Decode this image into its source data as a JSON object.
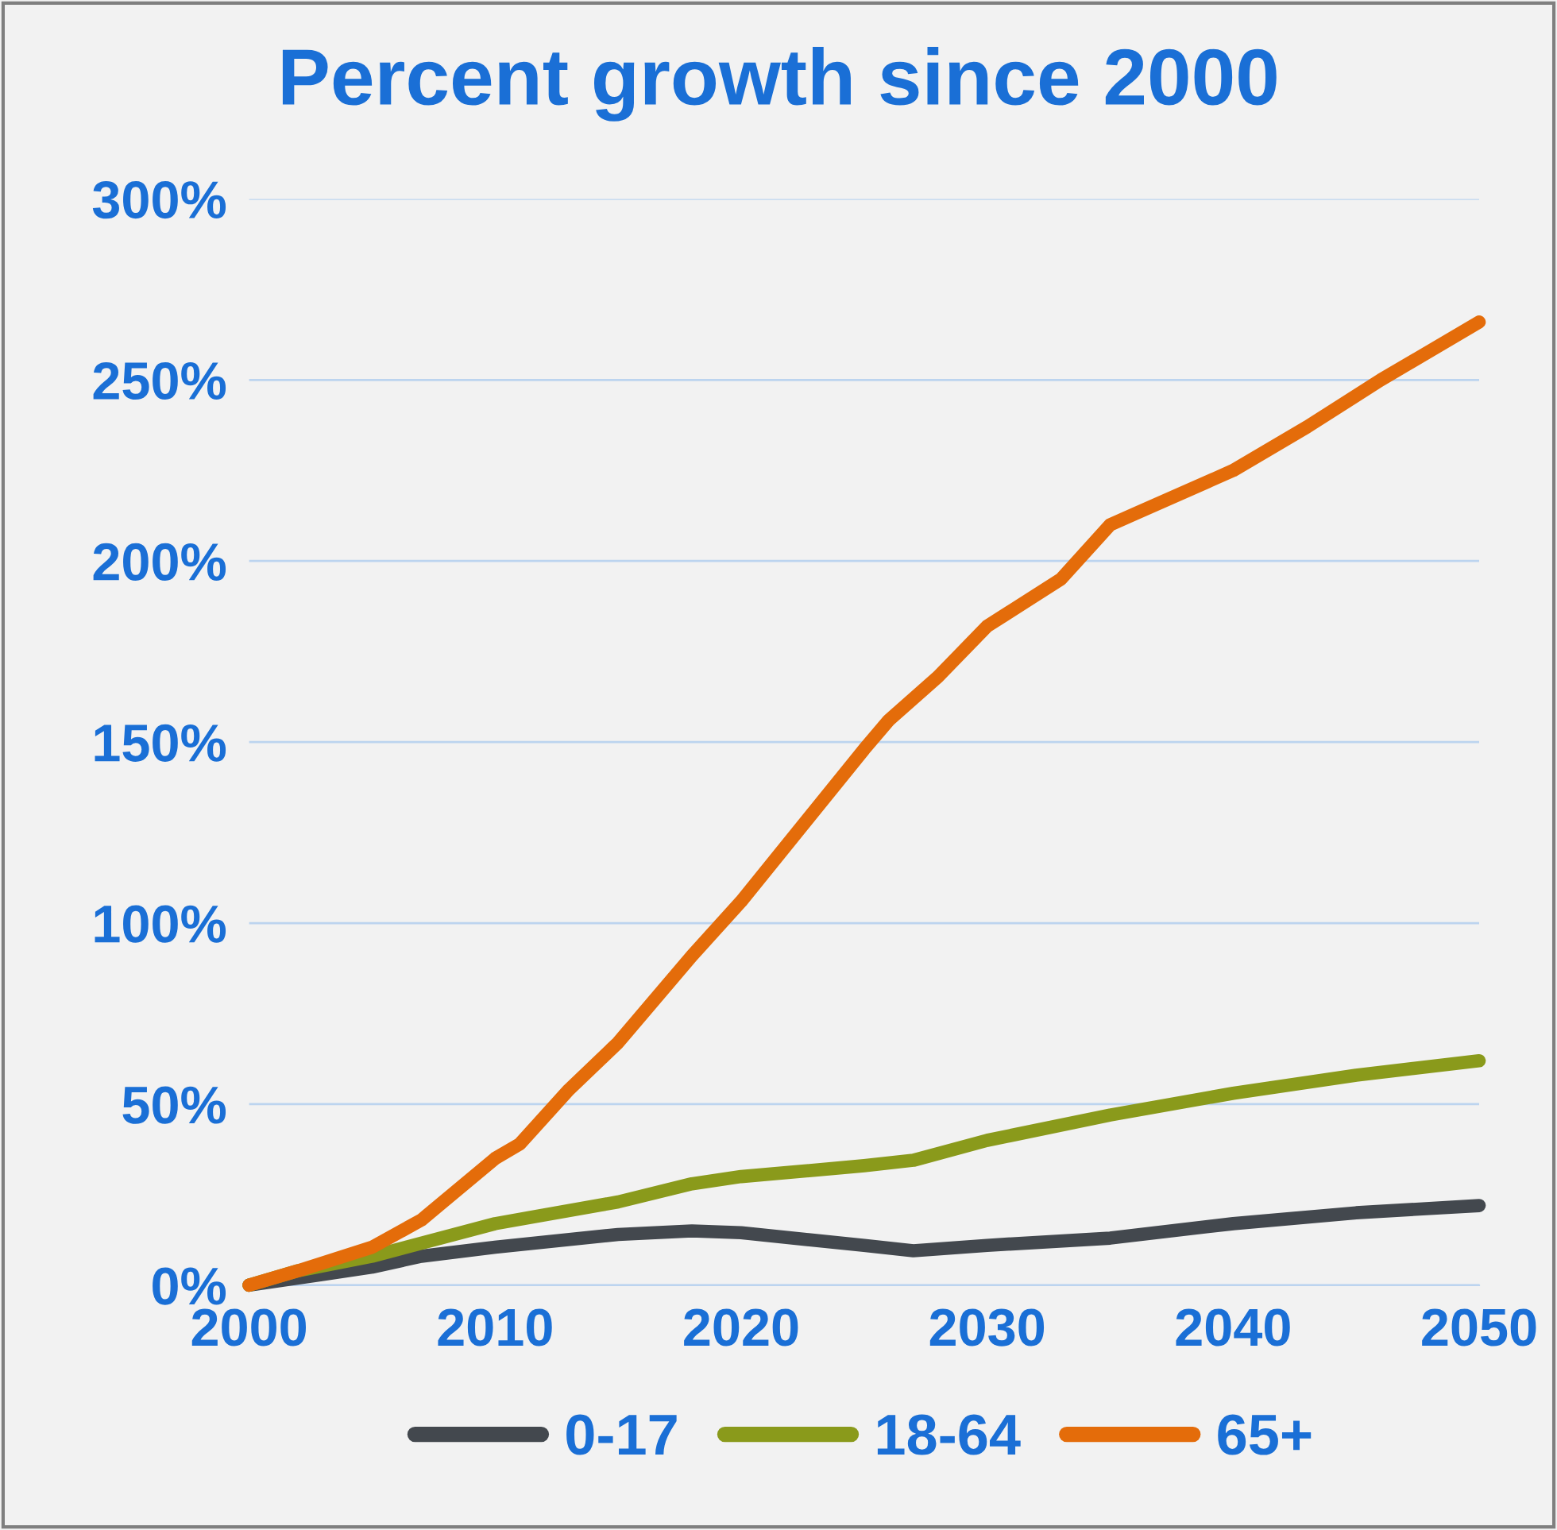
{
  "chart_data": {
    "type": "line",
    "title": "Percent growth since 2000",
    "xlim": [
      2000,
      2050
    ],
    "xticks": [
      2000,
      2010,
      2020,
      2030,
      2040,
      2050
    ],
    "ylim": [
      0,
      300
    ],
    "yticks": [
      {
        "value": 0,
        "label": "0%"
      },
      {
        "value": 50,
        "label": "50%"
      },
      {
        "value": 100,
        "label": "100%"
      },
      {
        "value": 150,
        "label": "150%"
      },
      {
        "value": 200,
        "label": "200%"
      },
      {
        "value": 250,
        "label": "250%"
      },
      {
        "value": 300,
        "label": "300%"
      }
    ],
    "grid": "y",
    "legend": "bottom",
    "marker": "none",
    "line_style": "solid",
    "series": [
      {
        "name": "0-17",
        "color": "#43484e",
        "x": [
          2000,
          2003,
          2005,
          2007,
          2010,
          2015,
          2018,
          2020,
          2025,
          2027,
          2030,
          2035,
          2040,
          2045,
          2050
        ],
        "values": [
          0,
          3,
          5,
          8,
          10.5,
          14,
          15,
          14.5,
          11,
          9.5,
          11,
          13,
          17,
          20,
          22
        ]
      },
      {
        "name": "18-64",
        "color": "#8a9a1b",
        "x": [
          2000,
          2002,
          2005,
          2010,
          2015,
          2018,
          2020,
          2025,
          2027,
          2030,
          2035,
          2040,
          2045,
          2050
        ],
        "values": [
          0,
          4,
          8,
          17,
          23,
          28,
          30,
          33,
          34.5,
          40,
          47,
          53,
          58,
          62
        ]
      },
      {
        "name": "65+",
        "color": "#e46c0a",
        "x": [
          2000,
          2002,
          2005,
          2007,
          2010,
          2011,
          2013,
          2015,
          2018,
          2020,
          2025,
          2026,
          2028,
          2030,
          2033,
          2035,
          2036,
          2040,
          2043,
          2046,
          2050
        ],
        "values": [
          0,
          4,
          10.5,
          18,
          35,
          39,
          54,
          67,
          91,
          106,
          148,
          156,
          168,
          182,
          195,
          210,
          213,
          225,
          237,
          250,
          266
        ]
      }
    ]
  }
}
